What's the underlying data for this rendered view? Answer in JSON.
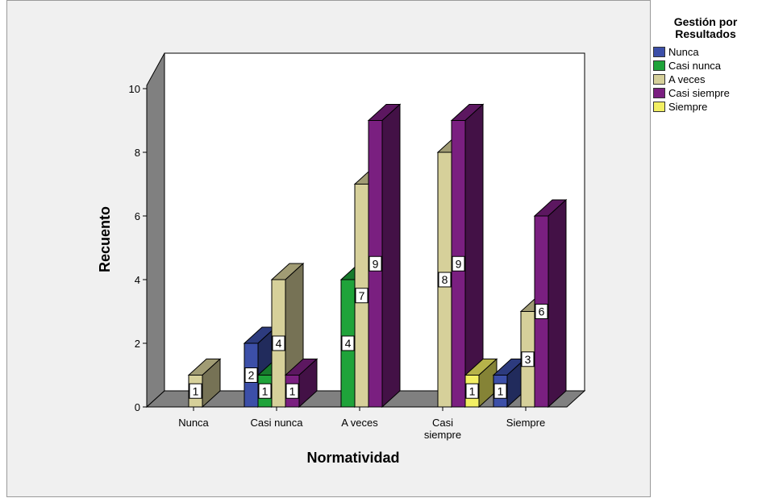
{
  "chart_data": {
    "type": "bar",
    "title": "",
    "xlabel": "Normatividad",
    "ylabel": "Recuento",
    "ylim": [
      0,
      10
    ],
    "yticks": [
      "0",
      "2",
      "4",
      "6",
      "8",
      "10"
    ],
    "categories": [
      "Nunca",
      "Casi nunca",
      "A veces",
      "Casi siempre",
      "Siempre"
    ],
    "category_labels": [
      [
        "Nunca"
      ],
      [
        "Casi nunca"
      ],
      [
        "A veces"
      ],
      [
        "Casi",
        "siempre"
      ],
      [
        "Siempre"
      ]
    ],
    "legend_title_lines": [
      "Gestión por",
      "Resultados"
    ],
    "legend_position": "right",
    "grid": false,
    "series": [
      {
        "name": "Nunca",
        "color": "#3c4fa8",
        "values": [
          0,
          2,
          0,
          0,
          1
        ]
      },
      {
        "name": "Casi nunca",
        "color": "#1fa33a",
        "values": [
          0,
          1,
          4,
          0,
          0
        ]
      },
      {
        "name": "A veces",
        "color": "#d6d09a",
        "values": [
          1,
          4,
          7,
          8,
          3
        ]
      },
      {
        "name": "Casi siempre",
        "color": "#7a1f80",
        "values": [
          0,
          1,
          9,
          9,
          6
        ]
      },
      {
        "name": "Siempre",
        "color": "#f2ef63",
        "values": [
          0,
          0,
          0,
          1,
          0
        ]
      }
    ]
  }
}
